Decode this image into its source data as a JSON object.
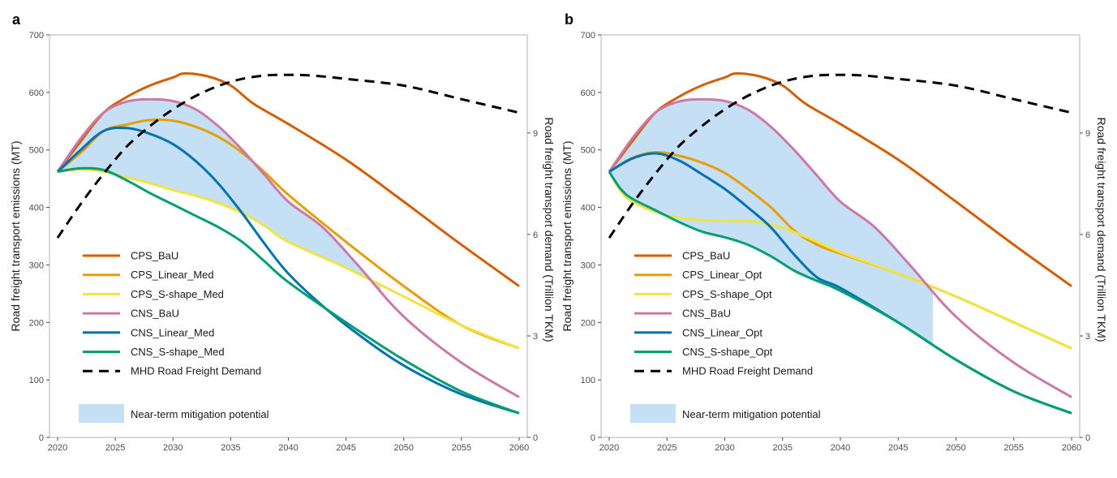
{
  "panels": [
    {
      "label": "a",
      "ylabel": "Road freight transport emissions (MT)",
      "y2label": "Road freight transport demand (Trillion TKM)",
      "legend": [
        "CPS_BaU",
        "CPS_Linear_Med",
        "CPS_S-shape_Med",
        "CNS_BaU",
        "CNS_Linear_Med",
        "CNS_S-shape_Med",
        "MHD Road Freight Demand"
      ],
      "shade_label": "Near-term mitigation potential"
    },
    {
      "label": "b",
      "ylabel": "Road freight transport emissions (MT)",
      "y2label": "Road freight transport demand (Trillion TKM)",
      "legend": [
        "CPS_BaU",
        "CPS_Linear_Opt",
        "CPS_S-shape_Opt",
        "CNS_BaU",
        "CNS_Linear_Opt",
        "CNS_S-shape_Opt",
        "MHD Road Freight Demand"
      ],
      "shade_label": "Near-term mitigation potential"
    }
  ],
  "colors": {
    "cps_bau": "#d55e00",
    "cps_linear": "#e69f00",
    "cps_sshape": "#f0e442",
    "cns_bau": "#cc79a7",
    "cns_linear": "#0072b2",
    "cns_sshape": "#009e73",
    "demand": "#000000",
    "shade": "#c5dff5"
  },
  "chart_data": [
    {
      "type": "line",
      "title": "a",
      "xlabel": "",
      "ylabel": "Road freight transport emissions (MT)",
      "y2label": "Road freight transport demand (Trillion TKM)",
      "xlim": [
        2020,
        2060
      ],
      "ylim": [
        0,
        700
      ],
      "y2lim": [
        0,
        11.9
      ],
      "x_ticks": [
        2020,
        2025,
        2030,
        2035,
        2040,
        2045,
        2050,
        2055,
        2060
      ],
      "y_ticks": [
        0,
        100,
        200,
        300,
        400,
        500,
        600,
        700
      ],
      "y2_ticks": [
        0,
        3,
        6,
        9
      ],
      "shaded_region": {
        "label": "Near-term mitigation potential",
        "upper": "CNS_BaU",
        "lower": "CPS_S-shape_Med",
        "until": 2048
      },
      "series": [
        {
          "name": "CPS_BaU",
          "color_key": "cps_bau",
          "x": [
            2020,
            2022,
            2024,
            2026,
            2028,
            2030,
            2031,
            2033,
            2035,
            2037,
            2040,
            2045,
            2050,
            2055,
            2060
          ],
          "y": [
            462,
            515,
            565,
            592,
            612,
            626,
            633,
            628,
            612,
            580,
            545,
            483,
            410,
            335,
            263
          ]
        },
        {
          "name": "CPS_Linear_Med",
          "color_key": "cps_linear",
          "x": [
            2020,
            2022,
            2024,
            2026,
            2028,
            2030,
            2032,
            2034,
            2036,
            2038,
            2040,
            2045,
            2050,
            2055,
            2060
          ],
          "y": [
            462,
            495,
            533,
            544,
            552,
            551,
            540,
            522,
            495,
            460,
            422,
            340,
            263,
            195,
            155
          ]
        },
        {
          "name": "CPS_S-shape_Med",
          "color_key": "cps_sshape",
          "x": [
            2020,
            2022,
            2024,
            2026,
            2028,
            2030,
            2032,
            2034,
            2036,
            2038,
            2040,
            2045,
            2050,
            2055,
            2060
          ],
          "y": [
            462,
            466,
            462,
            452,
            442,
            430,
            420,
            407,
            390,
            367,
            340,
            295,
            245,
            195,
            155
          ]
        },
        {
          "name": "CNS_BaU",
          "color_key": "cns_bau",
          "x": [
            2020,
            2022,
            2024,
            2026,
            2028,
            2030,
            2032,
            2034,
            2036,
            2038,
            2040,
            2043,
            2046,
            2050,
            2055,
            2060
          ],
          "y": [
            462,
            520,
            565,
            584,
            588,
            585,
            570,
            540,
            500,
            455,
            410,
            365,
            300,
            210,
            130,
            70
          ]
        },
        {
          "name": "CNS_Linear_Med",
          "color_key": "cns_linear",
          "x": [
            2020,
            2022,
            2024,
            2026,
            2028,
            2030,
            2032,
            2034,
            2036,
            2038,
            2040,
            2043,
            2046,
            2050,
            2055,
            2060
          ],
          "y": [
            462,
            500,
            533,
            538,
            528,
            510,
            480,
            440,
            390,
            335,
            285,
            228,
            180,
            125,
            75,
            42
          ]
        },
        {
          "name": "CNS_S-shape_Med",
          "color_key": "cns_sshape",
          "x": [
            2020,
            2022,
            2024,
            2026,
            2028,
            2030,
            2032,
            2034,
            2036,
            2038,
            2040,
            2045,
            2050,
            2055,
            2060
          ],
          "y": [
            462,
            468,
            465,
            447,
            425,
            405,
            385,
            365,
            340,
            305,
            270,
            200,
            135,
            80,
            42
          ]
        },
        {
          "name": "MHD Road Freight Demand",
          "color_key": "demand",
          "axis": "y2",
          "dashed": true,
          "x": [
            2020,
            2022,
            2024,
            2026,
            2028,
            2030,
            2032,
            2034,
            2036,
            2038,
            2040,
            2042,
            2045,
            2050,
            2055,
            2060
          ],
          "y": [
            5.9,
            6.9,
            7.8,
            8.6,
            9.2,
            9.7,
            10.1,
            10.4,
            10.6,
            10.7,
            10.72,
            10.7,
            10.6,
            10.4,
            10.0,
            9.6
          ]
        }
      ]
    },
    {
      "type": "line",
      "title": "b",
      "xlabel": "",
      "ylabel": "Road freight transport emissions (MT)",
      "y2label": "Road freight transport demand (Trillion TKM)",
      "xlim": [
        2020,
        2060
      ],
      "ylim": [
        0,
        700
      ],
      "y2lim": [
        0,
        11.9
      ],
      "x_ticks": [
        2020,
        2025,
        2030,
        2035,
        2040,
        2045,
        2050,
        2055,
        2060
      ],
      "y_ticks": [
        0,
        100,
        200,
        300,
        400,
        500,
        600,
        700
      ],
      "y2_ticks": [
        0,
        3,
        6,
        9
      ],
      "shaded_region": {
        "label": "Near-term mitigation potential",
        "upper": "CNS_BaU",
        "lower": "CNS_S-shape_Opt",
        "until": 2048
      },
      "series": [
        {
          "name": "CPS_BaU",
          "color_key": "cps_bau",
          "x": [
            2020,
            2022,
            2024,
            2026,
            2028,
            2030,
            2031,
            2033,
            2035,
            2037,
            2040,
            2045,
            2050,
            2055,
            2060
          ],
          "y": [
            462,
            515,
            565,
            592,
            612,
            626,
            633,
            628,
            612,
            580,
            545,
            483,
            410,
            335,
            263
          ]
        },
        {
          "name": "CPS_Linear_Opt",
          "color_key": "cps_linear",
          "x": [
            2020,
            2022,
            2024,
            2026,
            2028,
            2030,
            2032,
            2034,
            2036,
            2038,
            2040,
            2045,
            2050,
            2055,
            2060
          ],
          "y": [
            462,
            486,
            496,
            490,
            478,
            460,
            432,
            400,
            360,
            335,
            320,
            285,
            245,
            200,
            155
          ]
        },
        {
          "name": "CPS_S-shape_Opt",
          "color_key": "cps_sshape",
          "x": [
            2020,
            2021,
            2022,
            2024,
            2026,
            2028,
            2030,
            2032,
            2034,
            2036,
            2038,
            2040,
            2045,
            2050,
            2055,
            2060
          ],
          "y": [
            462,
            428,
            410,
            392,
            382,
            378,
            377,
            376,
            370,
            357,
            340,
            322,
            285,
            245,
            200,
            155
          ]
        },
        {
          "name": "CNS_BaU",
          "color_key": "cns_bau",
          "x": [
            2020,
            2022,
            2024,
            2026,
            2028,
            2030,
            2032,
            2034,
            2036,
            2038,
            2040,
            2043,
            2046,
            2050,
            2055,
            2060
          ],
          "y": [
            462,
            520,
            565,
            584,
            588,
            585,
            570,
            540,
            500,
            455,
            410,
            365,
            300,
            210,
            130,
            70
          ]
        },
        {
          "name": "CNS_Linear_Opt",
          "color_key": "cns_linear",
          "x": [
            2020,
            2022,
            2024,
            2026,
            2028,
            2030,
            2032,
            2034,
            2036,
            2038,
            2040,
            2045,
            2050,
            2055,
            2060
          ],
          "y": [
            462,
            485,
            494,
            482,
            458,
            432,
            400,
            365,
            318,
            278,
            260,
            200,
            135,
            80,
            42
          ]
        },
        {
          "name": "CNS_S-shape_Opt",
          "color_key": "cns_sshape",
          "x": [
            2020,
            2021,
            2022,
            2024,
            2026,
            2028,
            2030,
            2032,
            2034,
            2036,
            2038,
            2040,
            2045,
            2050,
            2055,
            2060
          ],
          "y": [
            462,
            432,
            415,
            395,
            375,
            358,
            348,
            335,
            315,
            290,
            272,
            255,
            200,
            135,
            80,
            42
          ]
        },
        {
          "name": "MHD Road Freight Demand",
          "color_key": "demand",
          "axis": "y2",
          "dashed": true,
          "x": [
            2020,
            2022,
            2024,
            2026,
            2028,
            2030,
            2032,
            2034,
            2036,
            2038,
            2040,
            2042,
            2045,
            2050,
            2055,
            2060
          ],
          "y": [
            5.9,
            6.9,
            7.8,
            8.6,
            9.2,
            9.7,
            10.1,
            10.4,
            10.6,
            10.7,
            10.72,
            10.7,
            10.6,
            10.4,
            10.0,
            9.6
          ]
        }
      ]
    }
  ]
}
